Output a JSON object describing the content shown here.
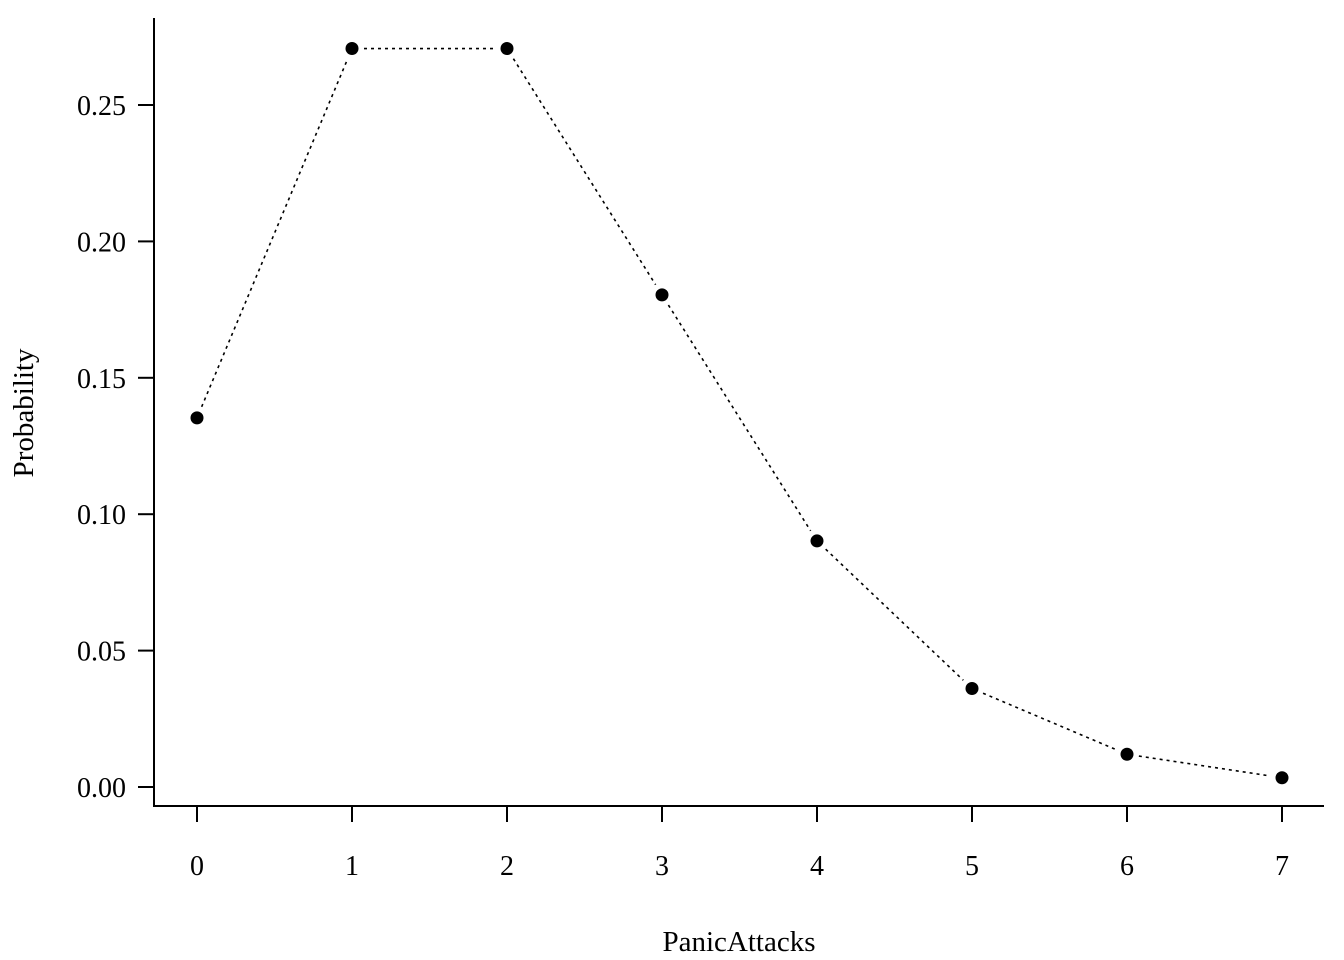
{
  "chart_data": {
    "type": "line",
    "xlabel": "PanicAttacks",
    "ylabel": "Probability",
    "categories": [
      "0",
      "1",
      "2",
      "3",
      "4",
      "5",
      "6",
      "7"
    ],
    "x": [
      0,
      1,
      2,
      3,
      4,
      5,
      6,
      7
    ],
    "y": [
      0.1353,
      0.2707,
      0.2707,
      0.1804,
      0.0902,
      0.0361,
      0.012,
      0.0034
    ],
    "xlim": [
      0,
      7
    ],
    "ylim": [
      0,
      0.25
    ],
    "yticks": [
      0.0,
      0.05,
      0.1,
      0.15,
      0.2,
      0.25
    ],
    "ytick_labels": [
      "0.00",
      "0.05",
      "0.10",
      "0.15",
      "0.20",
      "0.25"
    ],
    "line_style": "dotted",
    "marker": "filled-circle",
    "grid": false,
    "legend": "none",
    "color": "#000000"
  }
}
